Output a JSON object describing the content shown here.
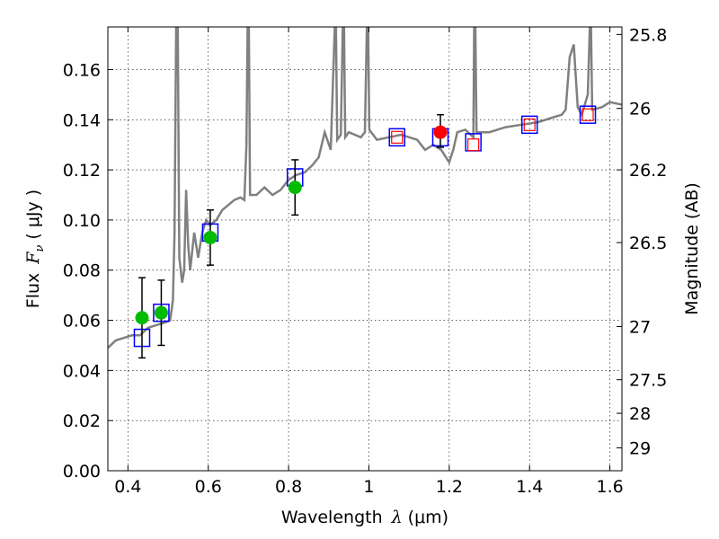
{
  "chart_data": {
    "type": "scatter",
    "xlabel_text": "Wavelength",
    "xlabel_symbol": "λ",
    "xlabel_unit": "(μm)",
    "ylabel_text": "Flux",
    "ylabel_symbol": "F",
    "ylabel_subscript": "ν",
    "ylabel_unit": "( μJy )",
    "y2label": "Magnitude (AB)",
    "xlim": [
      0.35,
      1.63
    ],
    "ylim": [
      0.0,
      0.177
    ],
    "grid": true,
    "x_ticks": [
      0.4,
      0.6,
      0.8,
      1.0,
      1.2,
      1.4,
      1.6
    ],
    "x_tick_labels": [
      "0.4",
      "0.6",
      "0.8",
      "1",
      "1.2",
      "1.4",
      "1.6"
    ],
    "y_ticks": [
      0.0,
      0.02,
      0.04,
      0.06,
      0.08,
      0.1,
      0.12,
      0.14,
      0.16
    ],
    "y_tick_labels": [
      "0.00",
      "0.02",
      "0.04",
      "0.06",
      "0.08",
      "0.10",
      "0.12",
      "0.14",
      "0.16"
    ],
    "y2_ticks": [
      {
        "flux": 0.174,
        "label": "25.8"
      },
      {
        "flux": 0.1445,
        "label": "26"
      },
      {
        "flux": 0.12,
        "label": "26.2"
      },
      {
        "flux": 0.091,
        "label": "26.5"
      },
      {
        "flux": 0.0575,
        "label": "27"
      },
      {
        "flux": 0.0363,
        "label": "27.5"
      },
      {
        "flux": 0.0229,
        "label": "28"
      },
      {
        "flux": 0.0091,
        "label": "29"
      }
    ],
    "colors": {
      "model": "#808080",
      "box": "#0000ff",
      "inner_box": "#ff0000",
      "photometry": "#00bb00",
      "highlight": "#ff0000",
      "error": "#000000"
    },
    "model_spectrum": [
      [
        0.35,
        0.049
      ],
      [
        0.37,
        0.052
      ],
      [
        0.39,
        0.053
      ],
      [
        0.41,
        0.054
      ],
      [
        0.43,
        0.054
      ],
      [
        0.45,
        0.057
      ],
      [
        0.47,
        0.058
      ],
      [
        0.49,
        0.059
      ],
      [
        0.505,
        0.06
      ],
      [
        0.512,
        0.068
      ],
      [
        0.516,
        0.095
      ],
      [
        0.52,
        0.177
      ],
      [
        0.524,
        0.177
      ],
      [
        0.528,
        0.085
      ],
      [
        0.535,
        0.075
      ],
      [
        0.54,
        0.08
      ],
      [
        0.545,
        0.112
      ],
      [
        0.55,
        0.09
      ],
      [
        0.555,
        0.08
      ],
      [
        0.565,
        0.095
      ],
      [
        0.575,
        0.085
      ],
      [
        0.585,
        0.095
      ],
      [
        0.595,
        0.1
      ],
      [
        0.605,
        0.098
      ],
      [
        0.62,
        0.1
      ],
      [
        0.635,
        0.104
      ],
      [
        0.65,
        0.106
      ],
      [
        0.665,
        0.108
      ],
      [
        0.68,
        0.109
      ],
      [
        0.69,
        0.108
      ],
      [
        0.695,
        0.13
      ],
      [
        0.698,
        0.177
      ],
      [
        0.701,
        0.177
      ],
      [
        0.704,
        0.11
      ],
      [
        0.72,
        0.11
      ],
      [
        0.74,
        0.113
      ],
      [
        0.76,
        0.11
      ],
      [
        0.78,
        0.112
      ],
      [
        0.8,
        0.116
      ],
      [
        0.82,
        0.118
      ],
      [
        0.84,
        0.119
      ],
      [
        0.86,
        0.122
      ],
      [
        0.875,
        0.125
      ],
      [
        0.89,
        0.135
      ],
      [
        0.905,
        0.128
      ],
      [
        0.915,
        0.177
      ],
      [
        0.918,
        0.177
      ],
      [
        0.921,
        0.132
      ],
      [
        0.93,
        0.134
      ],
      [
        0.935,
        0.177
      ],
      [
        0.938,
        0.177
      ],
      [
        0.941,
        0.133
      ],
      [
        0.95,
        0.135
      ],
      [
        0.965,
        0.134
      ],
      [
        0.98,
        0.133
      ],
      [
        0.99,
        0.135
      ],
      [
        0.995,
        0.177
      ],
      [
        0.998,
        0.177
      ],
      [
        1.001,
        0.136
      ],
      [
        1.02,
        0.132
      ],
      [
        1.05,
        0.133
      ],
      [
        1.08,
        0.134
      ],
      [
        1.1,
        0.133
      ],
      [
        1.12,
        0.132
      ],
      [
        1.14,
        0.128
      ],
      [
        1.16,
        0.13
      ],
      [
        1.18,
        0.128
      ],
      [
        1.2,
        0.123
      ],
      [
        1.21,
        0.128
      ],
      [
        1.22,
        0.135
      ],
      [
        1.24,
        0.136
      ],
      [
        1.26,
        0.133
      ],
      [
        1.262,
        0.177
      ],
      [
        1.265,
        0.177
      ],
      [
        1.268,
        0.135
      ],
      [
        1.3,
        0.135
      ],
      [
        1.34,
        0.137
      ],
      [
        1.38,
        0.138
      ],
      [
        1.42,
        0.139
      ],
      [
        1.46,
        0.141
      ],
      [
        1.48,
        0.142
      ],
      [
        1.49,
        0.144
      ],
      [
        1.5,
        0.165
      ],
      [
        1.51,
        0.17
      ],
      [
        1.52,
        0.145
      ],
      [
        1.53,
        0.142
      ],
      [
        1.545,
        0.15
      ],
      [
        1.55,
        0.177
      ],
      [
        1.553,
        0.177
      ],
      [
        1.556,
        0.144
      ],
      [
        1.58,
        0.145
      ],
      [
        1.6,
        0.147
      ],
      [
        1.63,
        0.146
      ]
    ],
    "model_boxes": [
      {
        "x": 0.435,
        "y": 0.053
      },
      {
        "x": 0.483,
        "y": 0.063
      },
      {
        "x": 0.605,
        "y": 0.095
      },
      {
        "x": 0.816,
        "y": 0.117
      },
      {
        "x": 1.07,
        "y": 0.133
      },
      {
        "x": 1.178,
        "y": 0.133
      },
      {
        "x": 1.26,
        "y": 0.131
      },
      {
        "x": 1.4,
        "y": 0.138
      },
      {
        "x": 1.545,
        "y": 0.142
      }
    ],
    "inner_boxes": [
      {
        "x": 1.07,
        "y": 0.133
      },
      {
        "x": 1.26,
        "y": 0.13
      },
      {
        "x": 1.4,
        "y": 0.138
      },
      {
        "x": 1.545,
        "y": 0.142
      }
    ],
    "photometry": [
      {
        "x": 0.435,
        "y": 0.061,
        "err_low": 0.045,
        "err_high": 0.077
      },
      {
        "x": 0.483,
        "y": 0.063,
        "err_low": 0.05,
        "err_high": 0.076
      },
      {
        "x": 0.605,
        "y": 0.093,
        "err_low": 0.082,
        "err_high": 0.104
      },
      {
        "x": 0.816,
        "y": 0.113,
        "err_low": 0.102,
        "err_high": 0.124
      }
    ],
    "highlight": [
      {
        "x": 1.178,
        "y": 0.135,
        "err_low": 0.129,
        "err_high": 0.142
      }
    ]
  }
}
